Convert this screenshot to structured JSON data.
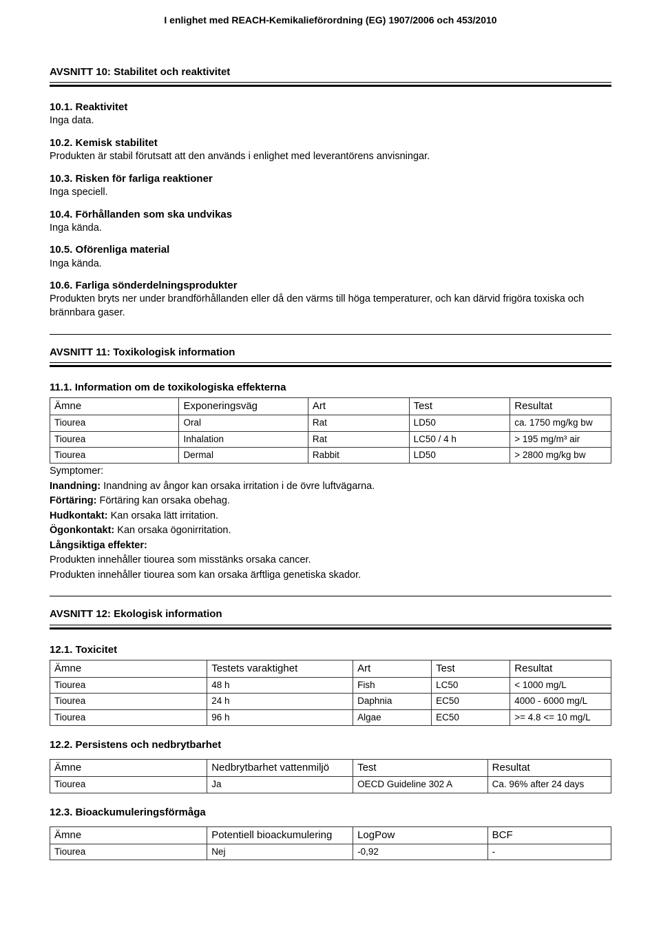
{
  "header": "I enlighet med REACH-Kemikalieförordning (EG) 1907/2006 och 453/2010",
  "section10": {
    "title": "AVSNITT 10: Stabilitet och reaktivitet",
    "s1": {
      "h": "10.1. Reaktivitet",
      "t": "Inga data."
    },
    "s2": {
      "h": "10.2. Kemisk stabilitet",
      "t": "Produkten är stabil förutsatt att den används i enlighet med leverantörens anvisningar."
    },
    "s3": {
      "h": "10.3. Risken för farliga reaktioner",
      "t": "Inga speciell."
    },
    "s4": {
      "h": "10.4. Förhållanden som ska undvikas",
      "t": "Inga kända."
    },
    "s5": {
      "h": "10.5. Oförenliga material",
      "t": "Inga kända."
    },
    "s6": {
      "h": "10.6. Farliga sönderdelningsprodukter",
      "t": "Produkten bryts ner under brandförhållanden eller då den värms till höga temperaturer, och kan därvid frigöra toxiska och brännbara gaser."
    }
  },
  "section11": {
    "title": "AVSNITT 11: Toxikologisk information",
    "sub": "11.1. Information om de toxikologiska effekterna",
    "columns": [
      "Ämne",
      "Exponeringsväg",
      "Art",
      "Test",
      "Resultat"
    ],
    "rows": [
      [
        "Tiourea",
        "Oral",
        "Rat",
        "LD50",
        "ca. 1750 mg/kg bw"
      ],
      [
        "Tiourea",
        "Inhalation",
        "Rat",
        "LC50 / 4 h",
        "> 195 mg/m³ air"
      ],
      [
        "Tiourea",
        "Dermal",
        "Rabbit",
        "LD50",
        "> 2800 mg/kg bw"
      ]
    ],
    "colwidths": [
      "23%",
      "23%",
      "18%",
      "18%",
      "18%"
    ],
    "sym_h": "Symptomer:",
    "l1b": "Inandning:",
    "l1t": " Inandning av ångor kan orsaka irritation i de övre luftvägarna.",
    "l2b": "Förtäring:",
    "l2t": " Förtäring kan orsaka obehag.",
    "l3b": "Hudkontakt:",
    "l3t": " Kan orsaka lätt irritation.",
    "l4b": "Ögonkontakt:",
    "l4t": " Kan orsaka ögonirritation.",
    "l5b": "Långsiktiga effekter:",
    "l6": "Produkten innehåller tiourea som misstänks orsaka cancer.",
    "l7": "Produkten innehåller tiourea som kan orsaka ärftliga genetiska skador."
  },
  "section12": {
    "title": "AVSNITT 12: Ekologisk information",
    "s1": {
      "h": "12.1. Toxicitet",
      "columns": [
        "Ämne",
        "Testets varaktighet",
        "Art",
        "Test",
        "Resultat"
      ],
      "rows": [
        [
          "Tiourea",
          "48 h",
          "Fish",
          "LC50",
          "< 1000 mg/L"
        ],
        [
          "Tiourea",
          "24 h",
          "Daphnia",
          "EC50",
          "4000 - 6000 mg/L"
        ],
        [
          "Tiourea",
          "96 h",
          "Algae",
          "EC50",
          ">= 4.8 <= 10 mg/L"
        ]
      ],
      "colwidths": [
        "28%",
        "26%",
        "14%",
        "14%",
        "18%"
      ]
    },
    "s2": {
      "h": "12.2. Persistens och nedbrytbarhet",
      "columns": [
        "Ämne",
        "Nedbrytbarhet vattenmiljö",
        "Test",
        "Resultat"
      ],
      "rows": [
        [
          "Tiourea",
          "Ja",
          "OECD Guideline 302 A",
          "Ca. 96% after 24 days"
        ]
      ],
      "colwidths": [
        "28%",
        "26%",
        "24%",
        "22%"
      ]
    },
    "s3": {
      "h": "12.3. Bioackumuleringsförmåga",
      "columns": [
        "Ämne",
        "Potentiell bioackumulering",
        "LogPow",
        "BCF"
      ],
      "rows": [
        [
          "Tiourea",
          "Nej",
          "-0,92",
          "-"
        ]
      ],
      "colwidths": [
        "28%",
        "26%",
        "24%",
        "22%"
      ]
    }
  }
}
